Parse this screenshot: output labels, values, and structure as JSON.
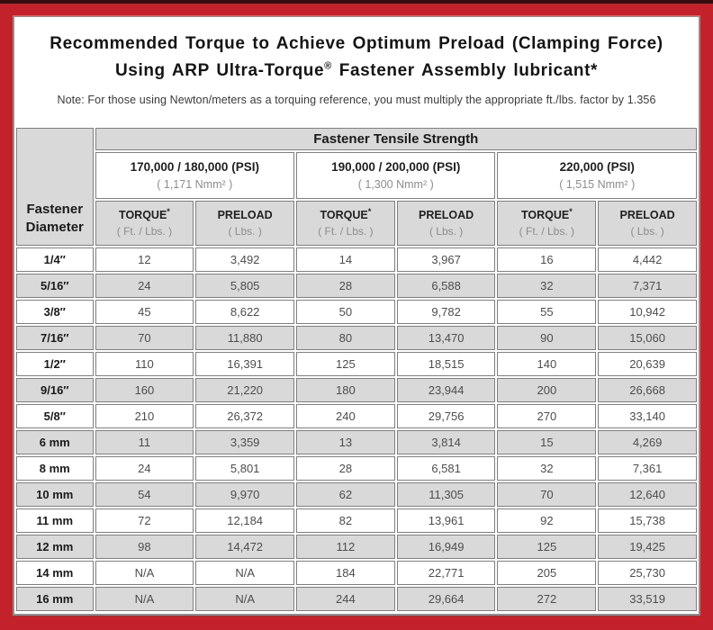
{
  "title": {
    "line1": "Recommended Torque to Achieve Optimum Preload (Clamping Force)",
    "line2_pre": "Using ARP Ultra-Torque",
    "line2_reg_mark": "®",
    "line2_post": " Fastener Assembly lubricant*",
    "note": "Note: For those using Newton/meters as a torquing reference, you must multiply the appropriate ft./lbs. factor by 1.356"
  },
  "colors": {
    "frame_red": "#c4222a",
    "frame_top_strip": "#380c0e",
    "panel_border_gray": "#8e8e8e",
    "cell_border_gray": "#7f7f7f",
    "row_stripe_gray": "#d9d9d9"
  },
  "table": {
    "corner_header": {
      "line1": "Fastener",
      "line2": "Diameter"
    },
    "tensile_header": "Fastener Tensile Strength",
    "psi_groups": [
      {
        "psi": "170,000 / 180,000 (PSI)",
        "nmm": "( 1,171 Nmm² )"
      },
      {
        "psi": "190,000 / 200,000 (PSI)",
        "nmm": "( 1,300 Nmm² )"
      },
      {
        "psi": "220,000 (PSI)",
        "nmm": "( 1,515 Nmm² )"
      }
    ],
    "torque_header": {
      "label": "TORQUE",
      "sup": "*",
      "sub": "( Ft. / Lbs. )"
    },
    "preload_header": {
      "label": "PRELOAD",
      "sup": "",
      "sub": "( Lbs. )"
    },
    "rows": [
      {
        "d": "1/4″",
        "v": [
          "12",
          "3,492",
          "14",
          "3,967",
          "16",
          "4,442"
        ]
      },
      {
        "d": "5/16″",
        "v": [
          "24",
          "5,805",
          "28",
          "6,588",
          "32",
          "7,371"
        ]
      },
      {
        "d": "3/8″",
        "v": [
          "45",
          "8,622",
          "50",
          "9,782",
          "55",
          "10,942"
        ]
      },
      {
        "d": "7/16″",
        "v": [
          "70",
          "11,880",
          "80",
          "13,470",
          "90",
          "15,060"
        ]
      },
      {
        "d": "1/2″",
        "v": [
          "110",
          "16,391",
          "125",
          "18,515",
          "140",
          "20,639"
        ]
      },
      {
        "d": "9/16″",
        "v": [
          "160",
          "21,220",
          "180",
          "23,944",
          "200",
          "26,668"
        ]
      },
      {
        "d": "5/8″",
        "v": [
          "210",
          "26,372",
          "240",
          "29,756",
          "270",
          "33,140"
        ]
      },
      {
        "d": "6 mm",
        "v": [
          "11",
          "3,359",
          "13",
          "3,814",
          "15",
          "4,269"
        ]
      },
      {
        "d": "8 mm",
        "v": [
          "24",
          "5,801",
          "28",
          "6,581",
          "32",
          "7,361"
        ]
      },
      {
        "d": "10 mm",
        "v": [
          "54",
          "9,970",
          "62",
          "11,305",
          "70",
          "12,640"
        ]
      },
      {
        "d": "11 mm",
        "v": [
          "72",
          "12,184",
          "82",
          "13,961",
          "92",
          "15,738"
        ]
      },
      {
        "d": "12 mm",
        "v": [
          "98",
          "14,472",
          "112",
          "16,949",
          "125",
          "19,425"
        ]
      },
      {
        "d": "14 mm",
        "v": [
          "N/A",
          "N/A",
          "184",
          "22,771",
          "205",
          "25,730"
        ]
      },
      {
        "d": "16 mm",
        "v": [
          "N/A",
          "N/A",
          "244",
          "29,664",
          "272",
          "33,519"
        ]
      }
    ]
  }
}
